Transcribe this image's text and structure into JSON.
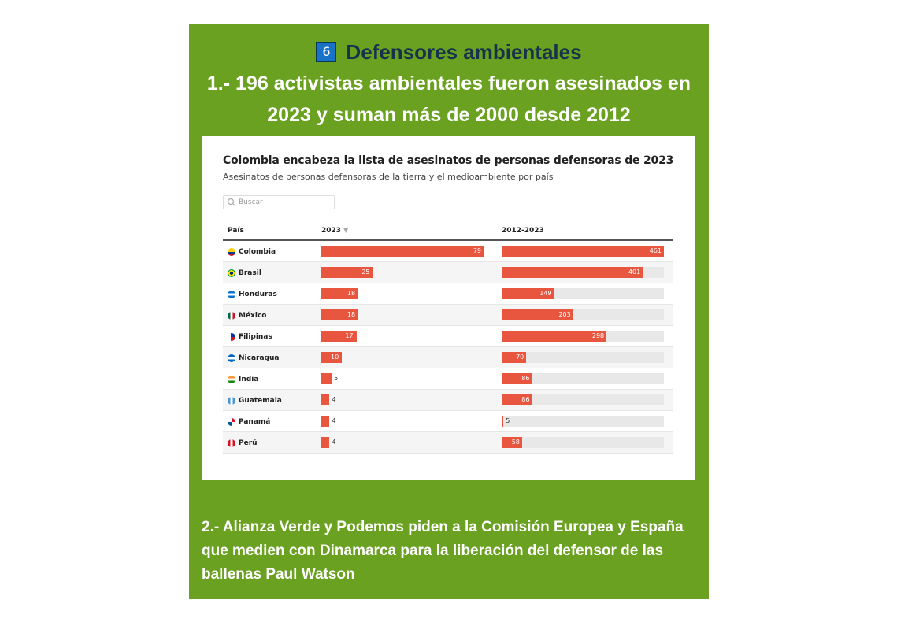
{
  "section": {
    "number": "6",
    "title": "Defensores ambientales"
  },
  "headline1": "1.- 196 activistas ambientales fueron asesinados en 2023 y suman más de 2000 desde 2012",
  "headline2": "2.- Alianza Verde y Podemos piden a la Comisión Europea y España que medien con Dinamarca para la liberación del defensor de las ballenas Paul Watson",
  "colors": {
    "panel_green": "#6aa121",
    "bar": "#e9563f",
    "track": "#e8e8e8",
    "badge_blue": "#1673c8"
  },
  "chart_data": {
    "type": "table",
    "title": "Colombia encabeza la lista de asesinatos de personas defensoras de 2023",
    "subtitle": "Asesinatos de personas defensoras de la tierra y el medioambiente por país",
    "search_placeholder": "Buscar",
    "columns": [
      "País",
      "2023",
      "2012-2023"
    ],
    "sort_indicator": "▼",
    "max_2023": 79,
    "max_total": 461,
    "rows": [
      {
        "country": "Colombia",
        "flag": "colombia",
        "v2023": 79,
        "vtotal": 461
      },
      {
        "country": "Brasil",
        "flag": "brasil",
        "v2023": 25,
        "vtotal": 401
      },
      {
        "country": "Honduras",
        "flag": "honduras",
        "v2023": 18,
        "vtotal": 149
      },
      {
        "country": "México",
        "flag": "mexico",
        "v2023": 18,
        "vtotal": 203
      },
      {
        "country": "Filipinas",
        "flag": "filipinas",
        "v2023": 17,
        "vtotal": 298
      },
      {
        "country": "Nicaragua",
        "flag": "nicaragua",
        "v2023": 10,
        "vtotal": 70
      },
      {
        "country": "India",
        "flag": "india",
        "v2023": 5,
        "vtotal": 86
      },
      {
        "country": "Guatemala",
        "flag": "guatemala",
        "v2023": 4,
        "vtotal": 86
      },
      {
        "country": "Panamá",
        "flag": "panama",
        "v2023": 4,
        "vtotal": 5
      },
      {
        "country": "Perú",
        "flag": "peru",
        "v2023": 4,
        "vtotal": 58
      }
    ]
  }
}
